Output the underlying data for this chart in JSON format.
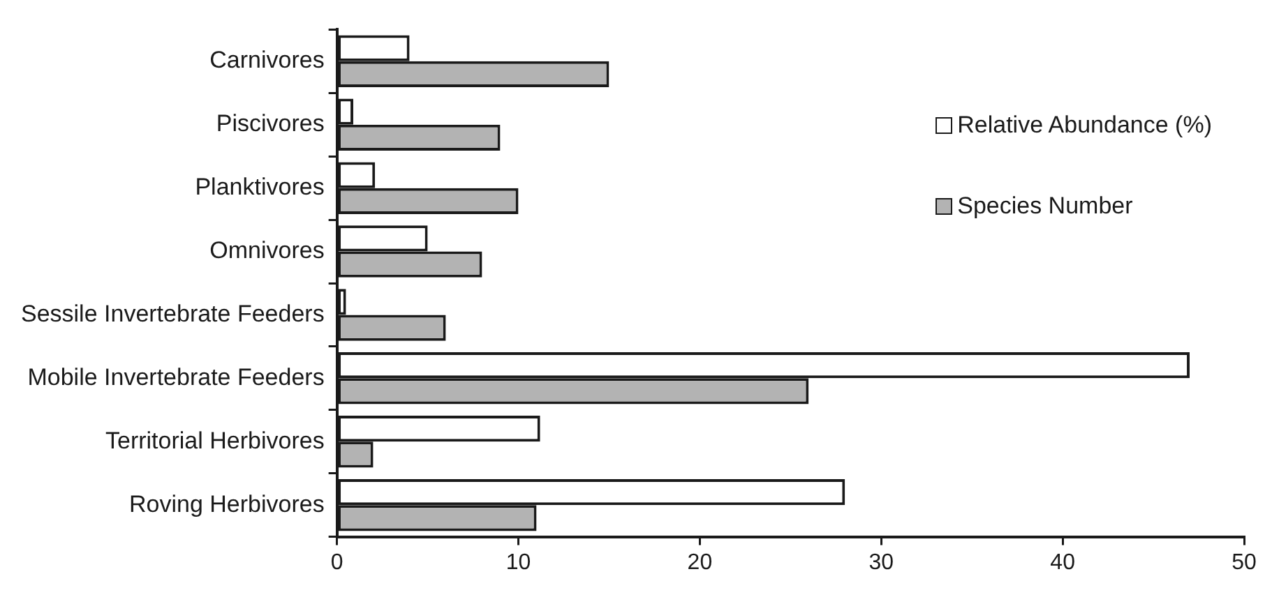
{
  "chart_data": {
    "type": "bar",
    "orientation": "horizontal",
    "categories": [
      "Carnivores",
      "Piscivores",
      "Planktivores",
      "Omnivores",
      "Sessile Invertebrate Feeders",
      "Mobile Invertebrate Feeders",
      "Territorial Herbivores",
      "Roving Herbivores"
    ],
    "series": [
      {
        "name": "Relative Abundance (%)",
        "color": "#ffffff",
        "values": [
          4,
          0.9,
          2.1,
          5,
          0.5,
          47,
          11.2,
          28
        ]
      },
      {
        "name": "Species Number",
        "color": "#b3b3b3",
        "values": [
          15,
          9,
          10,
          8,
          6,
          26,
          2,
          11
        ]
      }
    ],
    "xlim": [
      0,
      50
    ],
    "xticks": [
      0,
      10,
      20,
      30,
      40,
      50
    ],
    "grid": false,
    "legend": "top right"
  }
}
